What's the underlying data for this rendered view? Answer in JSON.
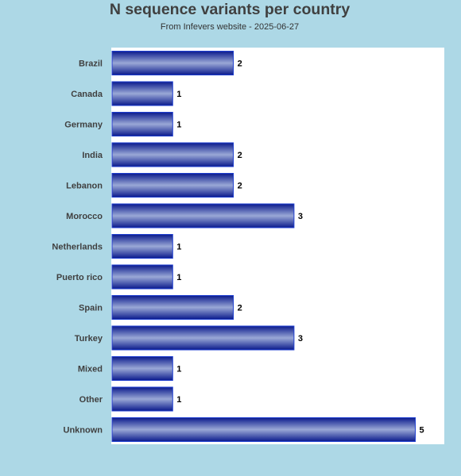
{
  "chart_data": {
    "type": "bar",
    "orientation": "horizontal",
    "title": "N sequence variants per country",
    "subtitle": "From Infevers website - 2025-06-27",
    "categories": [
      "Brazil",
      "Canada",
      "Germany",
      "India",
      "Lebanon",
      "Morocco",
      "Netherlands",
      "Puerto rico",
      "Spain",
      "Turkey",
      "Mixed",
      "Other",
      "Unknown"
    ],
    "values": [
      2,
      1,
      1,
      2,
      2,
      3,
      1,
      1,
      2,
      3,
      1,
      1,
      5
    ],
    "xlim": [
      0,
      5.5
    ],
    "grid": false,
    "legend": "none",
    "colors": {
      "background": "#add8e6",
      "plot_background": "#ffffff",
      "bar_dark": "#0a1a8c",
      "bar_light": "#9aa8d6",
      "bar_edge": "#1f3fd0"
    }
  }
}
